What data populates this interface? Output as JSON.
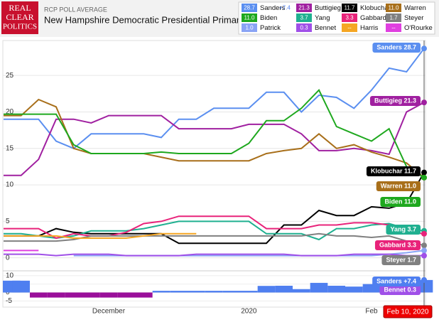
{
  "header": {
    "logo": [
      "REAL",
      "CLEAR",
      "POLITICS"
    ],
    "kicker": "RCP POLL AVERAGE",
    "title": "New Hampshire Democratic Presidential Primary"
  },
  "chart_data": {
    "type": "line",
    "categories": [
      null,
      null,
      null,
      null,
      null,
      null,
      "December",
      null,
      null,
      null,
      null,
      null,
      null,
      null,
      "2020",
      null,
      null,
      null,
      null,
      null,
      null,
      "Feb",
      null,
      null,
      null
    ],
    "ylim": [
      -1.2,
      29.5
    ],
    "yticks": [
      0,
      5,
      10,
      15,
      20,
      25
    ],
    "grid": true,
    "end_date": "Feb 10, 2020",
    "series": [
      {
        "name": "Sanders",
        "color": "#5b8ff0",
        "value_label": "28.7",
        "values": [
          19,
          19,
          19,
          16,
          15,
          17,
          17,
          17,
          17,
          16.5,
          19,
          19,
          20.5,
          20.5,
          20.5,
          22.7,
          22.7,
          20,
          22.3,
          22,
          20.5,
          23,
          26,
          25.5,
          28.7
        ]
      },
      {
        "name": "Buttigieg",
        "color": "#a020a0",
        "value_label": "21.3",
        "values": [
          11.3,
          11.3,
          13.5,
          19,
          19,
          18.5,
          19.5,
          19.5,
          19.5,
          19.5,
          17.7,
          17.7,
          17.7,
          17.7,
          18.3,
          18.3,
          18.3,
          17,
          14.7,
          14.7,
          15,
          14.7,
          14.2,
          20,
          21.3
        ]
      },
      {
        "name": "Klobuchar",
        "color": "#000000",
        "value_label": "11.7",
        "values": [
          3,
          3,
          3,
          4,
          3.5,
          3.3,
          3.3,
          3.3,
          3.3,
          3.3,
          2,
          2,
          2,
          2,
          2,
          2,
          4.5,
          4.5,
          6.5,
          5.8,
          5.8,
          7,
          6.8,
          7.5,
          11.7
        ]
      },
      {
        "name": "Warren",
        "color": "#a86f1a",
        "value_label": "11.0",
        "values": [
          19.5,
          19.5,
          21.7,
          20.7,
          15,
          14.3,
          14.3,
          14.3,
          14.3,
          13.8,
          13.3,
          13.3,
          13.3,
          13.3,
          13.3,
          14.3,
          14.7,
          15,
          17,
          15,
          15.5,
          14.5,
          13.8,
          13,
          11
        ]
      },
      {
        "name": "Biden",
        "color": "#1ea81e",
        "value_label": "11.0",
        "values": [
          19.7,
          19.7,
          19.7,
          19.7,
          15.5,
          14.3,
          14.3,
          14.3,
          14.3,
          14.5,
          14.3,
          14.3,
          14.3,
          14.3,
          15.7,
          18.8,
          18.8,
          20.5,
          23,
          18,
          17,
          16,
          17.7,
          12.5,
          11
        ]
      },
      {
        "name": "Yang",
        "color": "#20b090",
        "value_label": "3.7",
        "values": [
          3.3,
          3.3,
          3,
          2.7,
          3,
          3.7,
          3.7,
          3.7,
          4,
          4.5,
          5,
          5,
          5,
          5,
          5,
          3.3,
          3.3,
          3.3,
          2.5,
          4,
          4,
          4.5,
          4.7,
          4,
          3.7
        ]
      },
      {
        "name": "Gabbard",
        "color": "#e8237a",
        "value_label": "3.3",
        "values": [
          4,
          4,
          4,
          2.7,
          3.3,
          3,
          3,
          3.5,
          4.7,
          5,
          5.7,
          5.7,
          5.7,
          5.7,
          5.7,
          4,
          4,
          4,
          4.5,
          4.5,
          4.8,
          4.8,
          4.5,
          3.5,
          3.3
        ]
      },
      {
        "name": "Steyer",
        "color": "#808080",
        "value_label": "1.7",
        "values": [
          2.3,
          2.3,
          2.3,
          2.3,
          2.5,
          3,
          3,
          3,
          3,
          3,
          3,
          3,
          3,
          3,
          3,
          3,
          3,
          3,
          3.3,
          3,
          3,
          2.8,
          3,
          2.3,
          1.7
        ]
      },
      {
        "name": "Patrick",
        "color": "#8aa4f5",
        "value_label": "1.0",
        "values": [
          null,
          null,
          null,
          null,
          0.3,
          0.3,
          0.3,
          0.3,
          0.3,
          0.3,
          0.3,
          0.3,
          0.3,
          0.3,
          0.3,
          0.3,
          0.3,
          0.3,
          0.3,
          0.3,
          0.3,
          0.3,
          0.5,
          0.7,
          1
        ]
      },
      {
        "name": "Bennet",
        "color": "#a050e8",
        "value_label": "0.3",
        "values": [
          0.5,
          0.5,
          0.5,
          0.3,
          0.5,
          0.5,
          0.5,
          0.3,
          0.3,
          0.3,
          0.3,
          0.5,
          0.5,
          0.5,
          0.5,
          0.5,
          0.5,
          0.3,
          0.3,
          0.3,
          0.5,
          0.5,
          0.5,
          0.3,
          0.3
        ]
      },
      {
        "name": "Harris",
        "color": "#f5a623",
        "value_label": "--",
        "values": [
          3,
          3,
          3,
          3,
          2.7,
          2.7,
          2.7,
          2.7,
          3,
          3.3,
          3.3,
          3.3,
          null,
          null,
          null,
          null,
          null,
          null,
          null,
          null,
          null,
          null,
          null,
          null,
          null
        ]
      },
      {
        "name": "O'Rourke",
        "color": "#e040e0",
        "value_label": "--",
        "values": [
          1,
          1,
          1,
          null,
          null,
          null,
          null,
          null,
          null,
          null,
          null,
          null,
          null,
          null,
          null,
          null,
          null,
          null,
          null,
          null,
          null,
          null,
          null,
          null,
          null
        ]
      }
    ],
    "spread": {
      "name": "Sanders",
      "value_label": "+7.4",
      "positive_color": "#4f7ff0",
      "negative_color": "#9a0f9a",
      "ylim": [
        -7.8,
        12.4
      ],
      "yticks": [
        10,
        5,
        0,
        -5
      ],
      "values": [
        7,
        7,
        -3,
        -3,
        -3,
        -3,
        -3,
        -3,
        -3,
        1,
        1,
        1,
        1,
        1,
        1,
        3.9,
        4,
        2,
        5.7,
        4,
        3.5,
        5,
        5.6,
        5.5,
        7.4
      ]
    }
  }
}
